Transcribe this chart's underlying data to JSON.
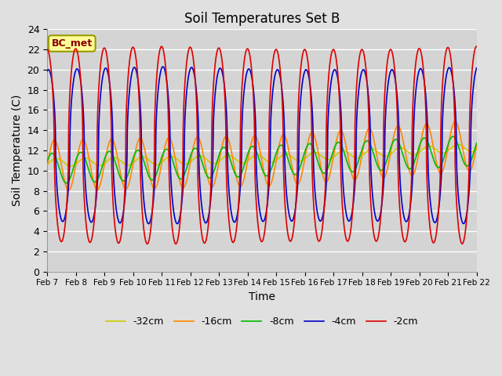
{
  "title": "Soil Temperatures Set B",
  "xlabel": "Time",
  "ylabel": "Soil Temperature (C)",
  "xlim": [
    0,
    15
  ],
  "ylim": [
    0,
    24
  ],
  "x_tick_labels": [
    "Feb 7",
    "Feb 8",
    "Feb 9",
    "Feb 10",
    "Feb 11",
    "Feb 12",
    "Feb 13",
    "Feb 14",
    "Feb 15",
    "Feb 16",
    "Feb 17",
    "Feb 18",
    "Feb 19",
    "Feb 20",
    "Feb 21",
    "Feb 22"
  ],
  "series": {
    "-2cm": {
      "color": "#dd0000",
      "lw": 1.2
    },
    "-4cm": {
      "color": "#0000cc",
      "lw": 1.2
    },
    "-8cm": {
      "color": "#00bb00",
      "lw": 1.2
    },
    "-16cm": {
      "color": "#ff8800",
      "lw": 1.2
    },
    "-32cm": {
      "color": "#cccc00",
      "lw": 1.2
    }
  },
  "annotation_text": "BC_met",
  "bg_color": "#e0e0e0",
  "plot_bg_color": "#d4d4d4",
  "grid_color": "#ffffff",
  "yticks": [
    0,
    2,
    4,
    6,
    8,
    10,
    12,
    14,
    16,
    18,
    20,
    22,
    24
  ]
}
